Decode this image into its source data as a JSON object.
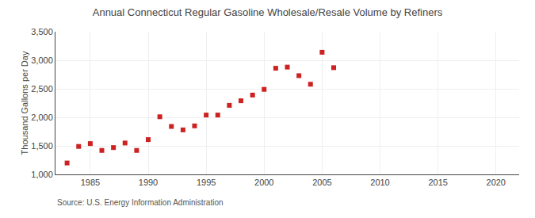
{
  "chart_data": {
    "type": "scatter",
    "title": "Annual Connecticut Regular Gasoline Wholesale/Resale Volume by Refiners",
    "ylabel": "Thousand Gallons per Day",
    "source": "Source: U.S. Energy Information Administration",
    "color": "#cc2222",
    "marker": "square",
    "grid": true,
    "x": [
      1983,
      1984,
      1985,
      1986,
      1987,
      1988,
      1989,
      1990,
      1991,
      1992,
      1993,
      1994,
      1995,
      1996,
      1997,
      1998,
      1999,
      2000,
      2001,
      2002,
      2003,
      2004,
      2005,
      2006
    ],
    "values": [
      1200,
      1490,
      1540,
      1420,
      1470,
      1550,
      1420,
      1610,
      2010,
      1840,
      1780,
      1850,
      2040,
      2040,
      2210,
      2290,
      2390,
      2490,
      2860,
      2880,
      2730,
      2580,
      3140,
      2870
    ],
    "xlim": [
      1982,
      2022
    ],
    "xticks": [
      1985,
      1990,
      1995,
      2000,
      2005,
      2010,
      2015,
      2020
    ],
    "ylim": [
      1000,
      3500
    ],
    "yticks": [
      {
        "value": 1000,
        "label": "1,000"
      },
      {
        "value": 1500,
        "label": "1,500"
      },
      {
        "value": 2000,
        "label": "2,000"
      },
      {
        "value": 2500,
        "label": "2,500"
      },
      {
        "value": 3000,
        "label": "3,000"
      },
      {
        "value": 3500,
        "label": "3,500"
      }
    ]
  }
}
